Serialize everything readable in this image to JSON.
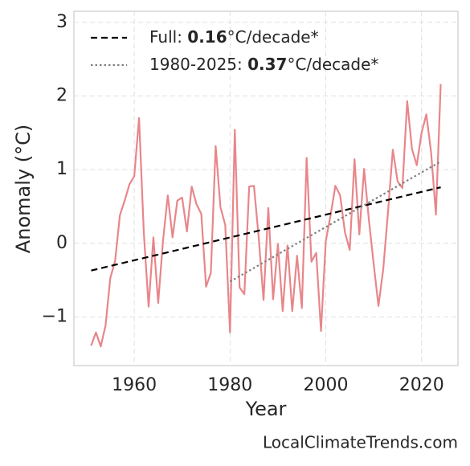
{
  "chart_data": {
    "type": "line",
    "xlabel": "Year",
    "ylabel": "Anomaly (°C)",
    "source": "LocalClimateTrends.com",
    "xlim": [
      1947.4,
      2027.6
    ],
    "ylim": [
      -1.66,
      3.15
    ],
    "xticks": [
      1960,
      1980,
      2000,
      2020
    ],
    "yticks": [
      {
        "value": -1,
        "label": "−1"
      },
      0,
      1,
      2,
      3
    ],
    "grid": true,
    "legend": "upper left",
    "series": [
      {
        "color": "#e8868a",
        "style": "solid",
        "x": [
          1951,
          1952,
          1953,
          1954,
          1955,
          1956,
          1957,
          1958,
          1959,
          1960,
          1961,
          1962,
          1963,
          1964,
          1965,
          1966,
          1967,
          1968,
          1969,
          1970,
          1971,
          1972,
          1973,
          1974,
          1975,
          1976,
          1977,
          1978,
          1979,
          1980,
          1981,
          1982,
          1983,
          1984,
          1985,
          1986,
          1987,
          1988,
          1989,
          1990,
          1991,
          1992,
          1993,
          1994,
          1995,
          1996,
          1997,
          1998,
          1999,
          2000,
          2001,
          2002,
          2003,
          2004,
          2005,
          2006,
          2007,
          2008,
          2009,
          2010,
          2011,
          2012,
          2013,
          2014,
          2015,
          2016,
          2017,
          2018,
          2019,
          2020,
          2021,
          2022,
          2023,
          2024
        ],
        "values": [
          -1.39,
          -1.21,
          -1.4,
          -1.12,
          -0.47,
          -0.24,
          0.38,
          0.58,
          0.8,
          0.91,
          1.7,
          0.14,
          -0.86,
          0.08,
          -0.81,
          0.03,
          0.65,
          0.08,
          0.58,
          0.62,
          0.16,
          0.77,
          0.53,
          0.4,
          -0.59,
          -0.4,
          1.32,
          0.49,
          0.25,
          -1.21,
          1.54,
          -0.6,
          -0.69,
          0.77,
          0.78,
          0.07,
          -0.77,
          0.48,
          -0.76,
          -0.01,
          -0.92,
          -0.03,
          -0.92,
          -0.17,
          -0.88,
          1.16,
          -0.25,
          -0.13,
          -1.19,
          0.03,
          0.38,
          0.78,
          0.65,
          0.15,
          -0.09,
          1.14,
          0.12,
          1.01,
          0.32,
          -0.28,
          -0.85,
          -0.35,
          0.43,
          1.27,
          0.84,
          0.75,
          1.93,
          1.28,
          1.06,
          1.5,
          1.75,
          1.23,
          0.39,
          2.16
        ]
      },
      {
        "name": [
          "Full: ",
          "0.16",
          "°C/decade*"
        ],
        "color": "#000000",
        "style": "dashed",
        "x": [
          1951,
          2024
        ],
        "values": [
          -0.37,
          0.76
        ]
      },
      {
        "name": [
          "1980-2025: ",
          "0.37",
          "°C/decade*"
        ],
        "color": "#808080",
        "style": "dotted",
        "x": [
          1980,
          2024
        ],
        "values": [
          -0.52,
          1.11
        ]
      }
    ]
  }
}
